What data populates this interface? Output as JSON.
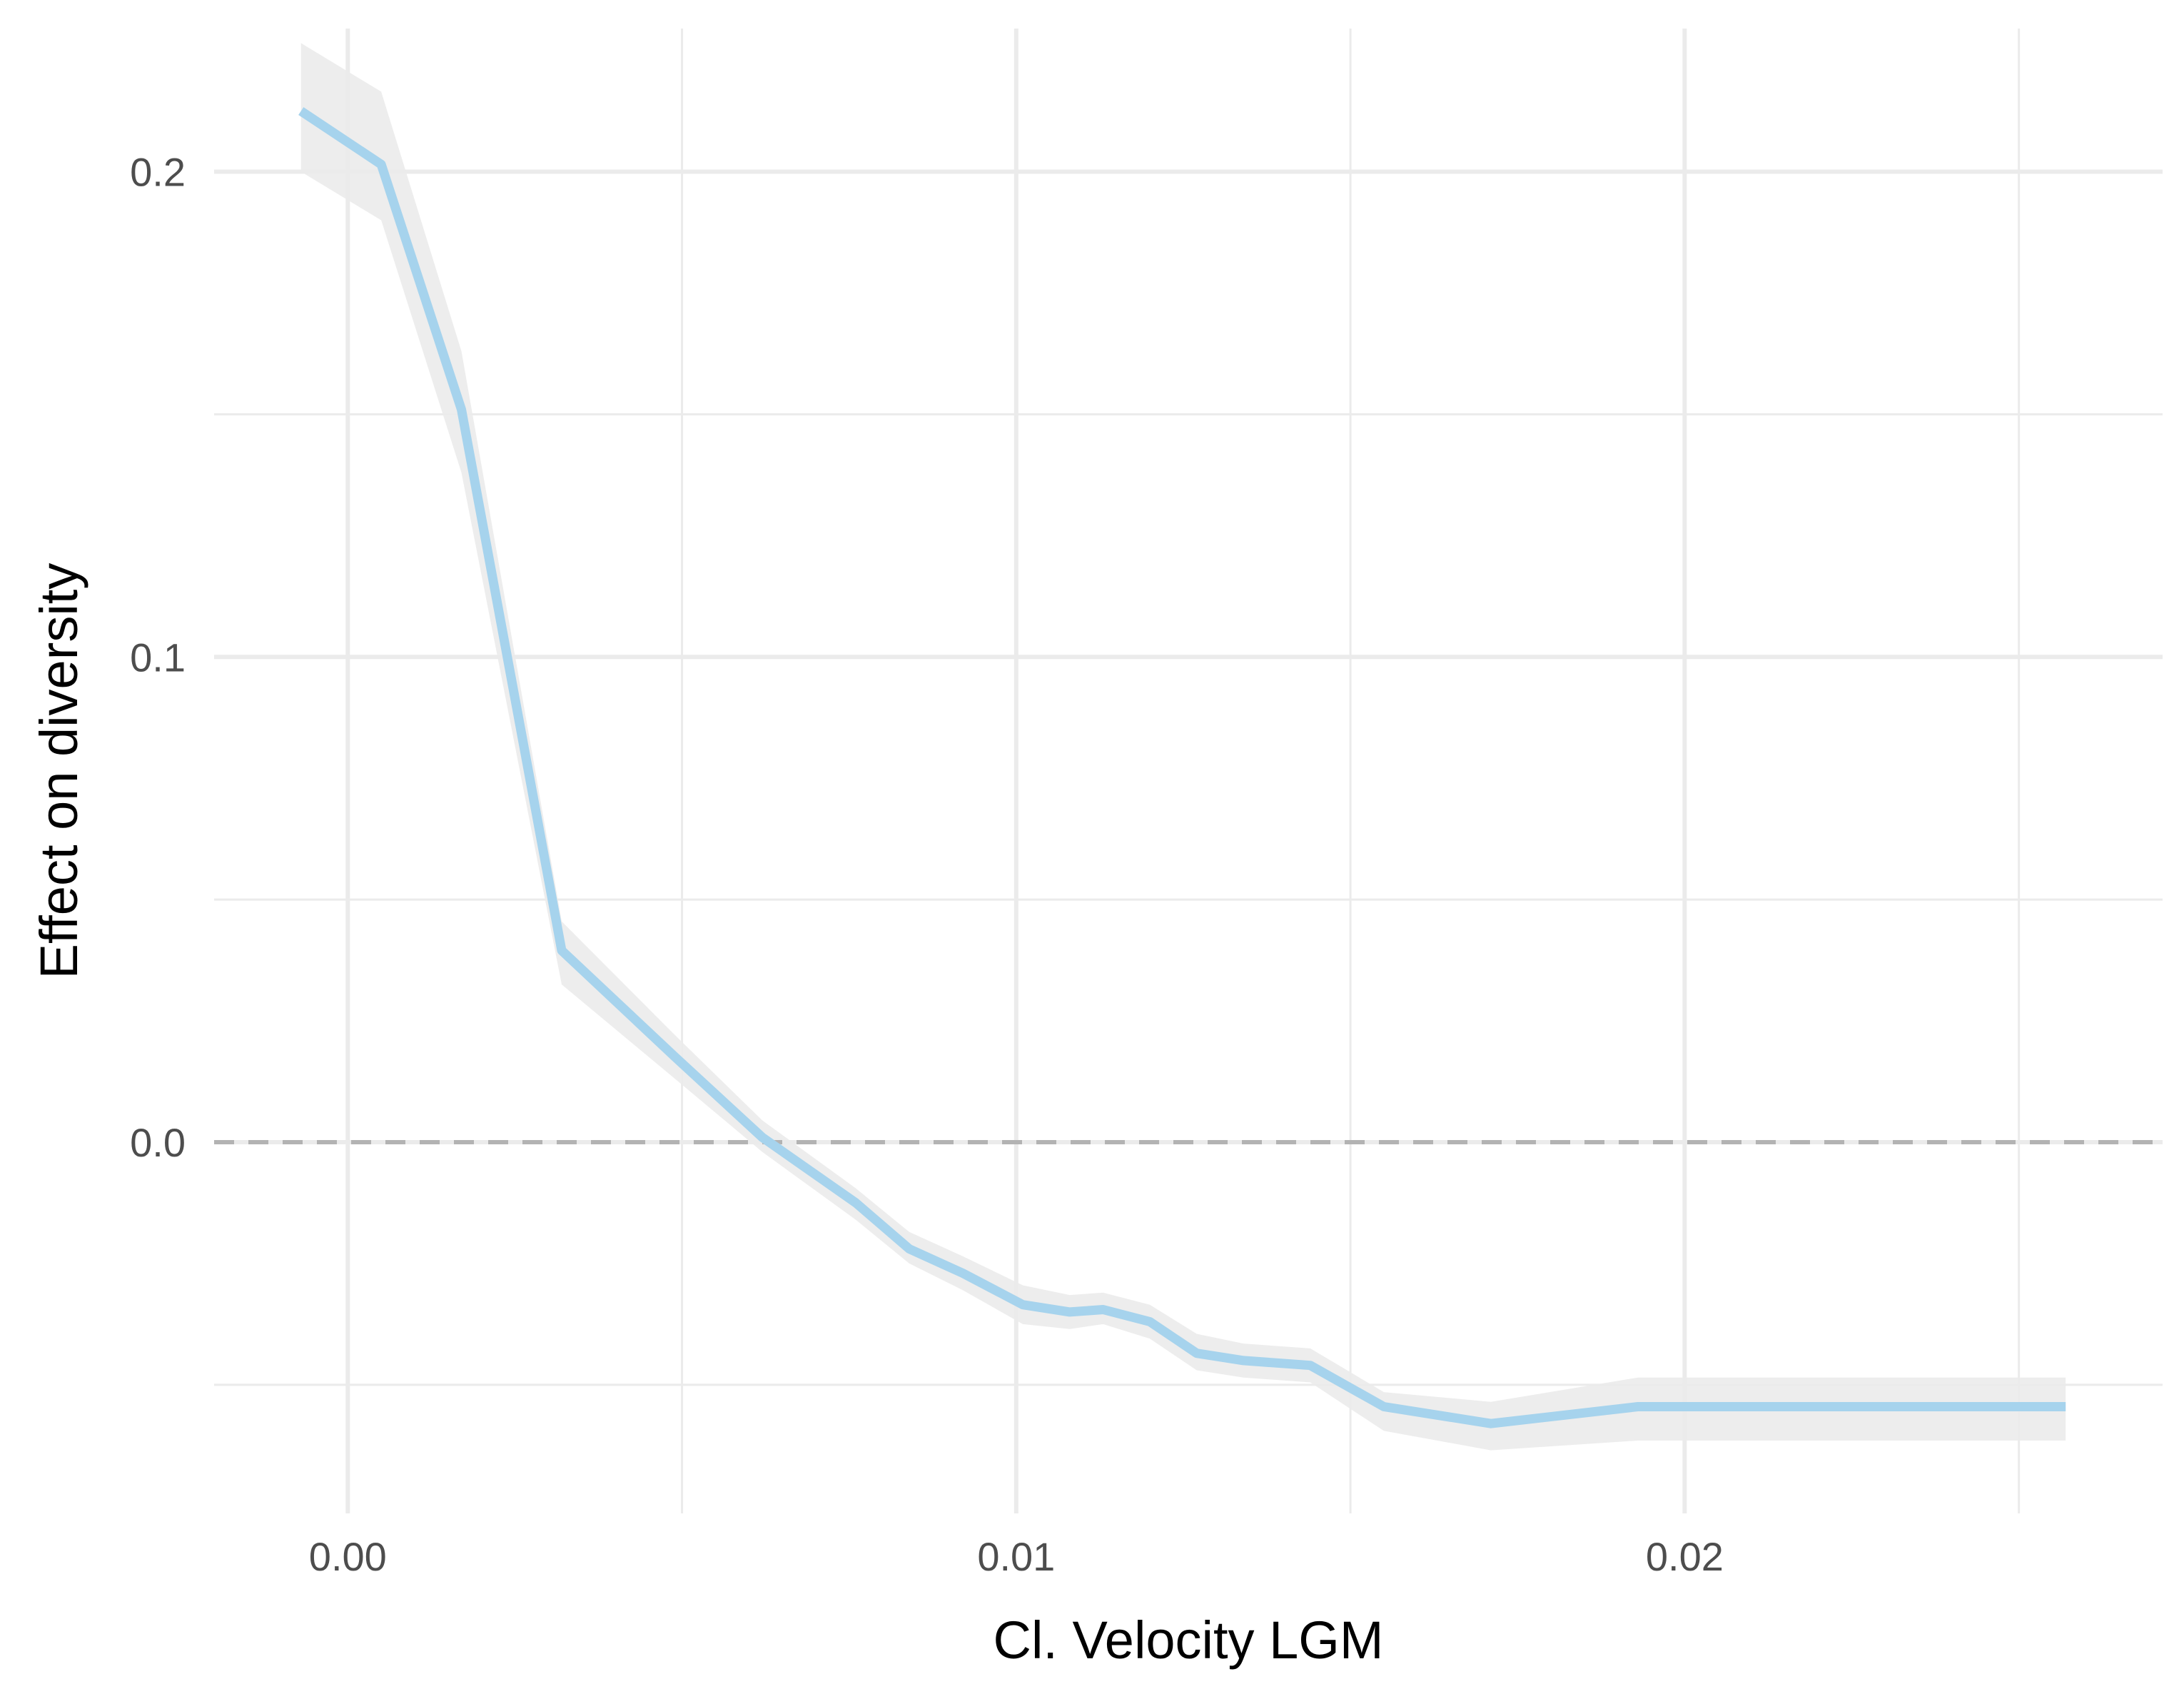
{
  "chart_data": {
    "type": "line",
    "xlabel": "Cl. Velocity LGM",
    "ylabel": "Effect on diversity",
    "xlim": [
      -0.002,
      0.02715
    ],
    "ylim": [
      -0.0765,
      0.2295
    ],
    "x_ticks": [
      0.0,
      0.01,
      0.02
    ],
    "x_tick_labels": [
      "0.00",
      "0.01",
      "0.02"
    ],
    "x_minor_ticks": [
      0.005,
      0.015,
      0.025
    ],
    "y_ticks": [
      0.0,
      0.1,
      0.2
    ],
    "y_tick_labels": [
      "0.0",
      "0.1",
      "0.2"
    ],
    "y_minor_ticks": [
      -0.05,
      0.05,
      0.15
    ],
    "grid": true,
    "reference_line": {
      "y": 0.0,
      "style": "dashed",
      "color": "#b3b3b3"
    },
    "colors": {
      "line": "#a6d3ed",
      "ribbon": "#ebebeb",
      "grid": "#ebebeb"
    },
    "series": [
      {
        "x": [
          -0.0007,
          0.0005,
          0.0017,
          0.0032,
          0.0049,
          0.0062,
          0.0076,
          0.0084,
          0.0092,
          0.0101,
          0.0108,
          0.0113,
          0.012,
          0.0127,
          0.0134,
          0.0144,
          0.0155,
          0.0171,
          0.0193,
          0.0257
        ],
        "y": [
          0.2125,
          0.2015,
          0.151,
          0.0395,
          0.0175,
          0.001,
          -0.0125,
          -0.022,
          -0.027,
          -0.0335,
          -0.035,
          -0.0345,
          -0.037,
          -0.0435,
          -0.045,
          -0.046,
          -0.0545,
          -0.058,
          -0.0545,
          -0.0545
        ],
        "lower": [
          0.2,
          0.19,
          0.138,
          0.0325,
          0.013,
          -0.002,
          -0.016,
          -0.025,
          -0.0305,
          -0.0375,
          -0.0385,
          -0.0375,
          -0.0405,
          -0.047,
          -0.0485,
          -0.0495,
          -0.0595,
          -0.0635,
          -0.0615,
          -0.0615
        ],
        "upper": [
          0.2265,
          0.2165,
          0.163,
          0.0455,
          0.022,
          0.0045,
          -0.0095,
          -0.0185,
          -0.0235,
          -0.0295,
          -0.0315,
          -0.031,
          -0.0335,
          -0.0395,
          -0.0415,
          -0.0425,
          -0.0515,
          -0.0535,
          -0.0485,
          -0.0485
        ]
      }
    ]
  }
}
